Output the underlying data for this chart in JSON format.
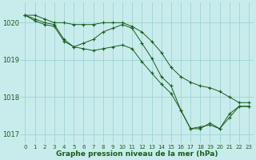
{
  "line1": {
    "x": [
      0,
      1,
      2,
      3,
      4,
      5,
      6,
      7,
      8,
      9,
      10,
      11,
      12,
      13,
      14,
      15,
      16,
      17,
      18,
      19,
      20,
      21,
      22,
      23
    ],
    "y": [
      1020.2,
      1020.2,
      1020.1,
      1020.0,
      1020.0,
      1019.95,
      1019.95,
      1019.95,
      1020.0,
      1020.0,
      1020.0,
      1019.9,
      1019.75,
      1019.5,
      1019.2,
      1018.8,
      1018.55,
      1018.4,
      1018.3,
      1018.25,
      1018.15,
      1018.0,
      1017.85,
      1017.85
    ]
  },
  "line2": {
    "x": [
      0,
      1,
      2,
      3,
      4,
      5,
      6,
      7,
      8,
      9,
      10,
      11,
      12,
      13,
      14,
      15,
      16,
      17,
      18,
      19,
      20,
      21,
      22,
      23
    ],
    "y": [
      1020.2,
      1020.1,
      1020.0,
      1019.95,
      1019.55,
      1019.35,
      1019.45,
      1019.55,
      1019.75,
      1019.85,
      1019.95,
      1019.85,
      1019.45,
      1019.05,
      1018.55,
      1018.3,
      1017.65,
      1017.15,
      1017.15,
      1017.3,
      1017.15,
      1017.55,
      1017.75,
      1017.75
    ]
  },
  "line3": {
    "x": [
      0,
      1,
      2,
      3,
      4,
      5,
      6,
      7,
      8,
      9,
      10,
      11,
      12,
      13,
      14,
      15,
      16,
      17,
      18,
      19,
      20,
      21,
      22,
      23
    ],
    "y": [
      1020.2,
      1020.05,
      1019.95,
      1019.9,
      1019.5,
      1019.35,
      1019.3,
      1019.25,
      1019.3,
      1019.35,
      1019.4,
      1019.3,
      1018.95,
      1018.65,
      1018.35,
      1018.1,
      1017.65,
      1017.15,
      1017.2,
      1017.25,
      1017.15,
      1017.45,
      1017.75,
      1017.75
    ]
  },
  "color": "#1a5c1a",
  "bg_color": "#c8ecec",
  "grid_color": "#a0d4d4",
  "xlabel": "Graphe pression niveau de la mer (hPa)",
  "xlim": [
    -0.5,
    23.5
  ],
  "ylim": [
    1016.75,
    1020.55
  ],
  "yticks": [
    1017,
    1018,
    1019,
    1020
  ],
  "xticks": [
    0,
    1,
    2,
    3,
    4,
    5,
    6,
    7,
    8,
    9,
    10,
    11,
    12,
    13,
    14,
    15,
    16,
    17,
    18,
    19,
    20,
    21,
    22,
    23
  ]
}
